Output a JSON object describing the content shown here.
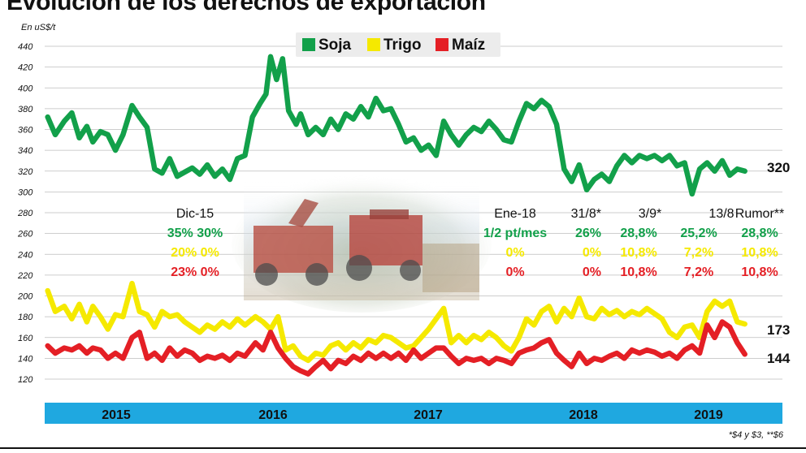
{
  "title": "Evolución de los derechos de exportación",
  "unit_label": "En uS$/t",
  "footnote": "*$4 y $3, **$6",
  "legend": [
    {
      "name": "Soja",
      "color": "#12a04a"
    },
    {
      "name": "Trigo",
      "color": "#f5e900"
    },
    {
      "name": "Maíz",
      "color": "#e41f25"
    }
  ],
  "annotations": [
    {
      "date": "Dic-15",
      "soja": "35% 30%",
      "trigo": "20% 0%",
      "maiz": "23% 0%"
    },
    {
      "date": "Ene-18",
      "soja": "1/2 pt/mes",
      "trigo": "0%",
      "maiz": "0%"
    },
    {
      "date": "31/8*",
      "soja": "26%",
      "trigo": "0%",
      "maiz": "0%"
    },
    {
      "date": "3/9*",
      "soja": "28,8%",
      "trigo": "10,8%",
      "maiz": "10,8%"
    },
    {
      "date": "13/8",
      "soja": "25,2%",
      "trigo": "7,2%",
      "maiz": "7,2%"
    },
    {
      "date": "Rumor**",
      "soja": "28,8%",
      "trigo": "10,8%",
      "maiz": "10,8%"
    }
  ],
  "chart_data": {
    "type": "line",
    "title": "Evolución de los derechos de exportación",
    "ylabel": "En uS$/t",
    "ylim": [
      120,
      450
    ],
    "yticks": [
      120,
      140,
      160,
      180,
      200,
      220,
      240,
      260,
      280,
      300,
      320,
      340,
      360,
      380,
      400,
      420,
      440
    ],
    "x_range": [
      2014.65,
      2019.55
    ],
    "year_labels": [
      "2015",
      "2016",
      "2017",
      "2018",
      "2019"
    ],
    "grid": true,
    "legend_position": "top-center",
    "series": [
      {
        "name": "Soja",
        "color": "#12a04a",
        "end_label": "320",
        "points": [
          [
            2014.67,
            372
          ],
          [
            2014.72,
            355
          ],
          [
            2014.78,
            368
          ],
          [
            2014.83,
            376
          ],
          [
            2014.88,
            352
          ],
          [
            2014.93,
            363
          ],
          [
            2014.97,
            348
          ],
          [
            2015.02,
            358
          ],
          [
            2015.07,
            355
          ],
          [
            2015.12,
            340
          ],
          [
            2015.17,
            355
          ],
          [
            2015.23,
            383
          ],
          [
            2015.28,
            372
          ],
          [
            2015.33,
            362
          ],
          [
            2015.38,
            322
          ],
          [
            2015.43,
            318
          ],
          [
            2015.48,
            332
          ],
          [
            2015.53,
            315
          ],
          [
            2015.58,
            319
          ],
          [
            2015.63,
            323
          ],
          [
            2015.68,
            317
          ],
          [
            2015.73,
            326
          ],
          [
            2015.78,
            315
          ],
          [
            2015.83,
            322
          ],
          [
            2015.88,
            312
          ],
          [
            2015.93,
            332
          ],
          [
            2015.98,
            335
          ],
          [
            2016.03,
            372
          ],
          [
            2016.08,
            385
          ],
          [
            2016.12,
            394
          ],
          [
            2016.15,
            430
          ],
          [
            2016.19,
            408
          ],
          [
            2016.23,
            428
          ],
          [
            2016.27,
            378
          ],
          [
            2016.32,
            365
          ],
          [
            2016.35,
            375
          ],
          [
            2016.4,
            355
          ],
          [
            2016.45,
            362
          ],
          [
            2016.5,
            355
          ],
          [
            2016.55,
            370
          ],
          [
            2016.6,
            360
          ],
          [
            2016.65,
            375
          ],
          [
            2016.7,
            370
          ],
          [
            2016.75,
            382
          ],
          [
            2016.8,
            372
          ],
          [
            2016.85,
            390
          ],
          [
            2016.9,
            378
          ],
          [
            2016.95,
            380
          ],
          [
            2017.0,
            365
          ],
          [
            2017.05,
            348
          ],
          [
            2017.1,
            352
          ],
          [
            2017.15,
            340
          ],
          [
            2017.2,
            345
          ],
          [
            2017.25,
            335
          ],
          [
            2017.3,
            368
          ],
          [
            2017.35,
            355
          ],
          [
            2017.4,
            345
          ],
          [
            2017.45,
            355
          ],
          [
            2017.5,
            362
          ],
          [
            2017.55,
            358
          ],
          [
            2017.6,
            368
          ],
          [
            2017.65,
            360
          ],
          [
            2017.7,
            350
          ],
          [
            2017.75,
            348
          ],
          [
            2017.8,
            368
          ],
          [
            2017.85,
            385
          ],
          [
            2017.9,
            380
          ],
          [
            2017.95,
            388
          ],
          [
            2018.0,
            382
          ],
          [
            2018.05,
            365
          ],
          [
            2018.1,
            322
          ],
          [
            2018.15,
            310
          ],
          [
            2018.2,
            326
          ],
          [
            2018.25,
            302
          ],
          [
            2018.3,
            312
          ],
          [
            2018.35,
            317
          ],
          [
            2018.4,
            310
          ],
          [
            2018.45,
            325
          ],
          [
            2018.5,
            335
          ],
          [
            2018.55,
            328
          ],
          [
            2018.6,
            335
          ],
          [
            2018.65,
            332
          ],
          [
            2018.7,
            335
          ],
          [
            2018.75,
            330
          ],
          [
            2018.8,
            335
          ],
          [
            2018.85,
            325
          ],
          [
            2018.9,
            328
          ],
          [
            2018.95,
            298
          ],
          [
            2019.0,
            322
          ],
          [
            2019.05,
            328
          ],
          [
            2019.1,
            320
          ],
          [
            2019.15,
            330
          ],
          [
            2019.2,
            316
          ],
          [
            2019.25,
            322
          ],
          [
            2019.3,
            320
          ]
        ]
      },
      {
        "name": "Trigo",
        "color": "#f5e900",
        "end_label": "173",
        "points": [
          [
            2014.67,
            205
          ],
          [
            2014.72,
            185
          ],
          [
            2014.78,
            190
          ],
          [
            2014.83,
            178
          ],
          [
            2014.88,
            192
          ],
          [
            2014.93,
            175
          ],
          [
            2014.97,
            190
          ],
          [
            2015.02,
            180
          ],
          [
            2015.07,
            168
          ],
          [
            2015.12,
            182
          ],
          [
            2015.17,
            180
          ],
          [
            2015.23,
            212
          ],
          [
            2015.28,
            185
          ],
          [
            2015.33,
            182
          ],
          [
            2015.38,
            170
          ],
          [
            2015.43,
            185
          ],
          [
            2015.48,
            180
          ],
          [
            2015.53,
            182
          ],
          [
            2015.58,
            175
          ],
          [
            2015.63,
            170
          ],
          [
            2015.68,
            165
          ],
          [
            2015.73,
            172
          ],
          [
            2015.78,
            168
          ],
          [
            2015.83,
            175
          ],
          [
            2015.88,
            170
          ],
          [
            2015.93,
            178
          ],
          [
            2015.98,
            172
          ],
          [
            2016.05,
            180
          ],
          [
            2016.1,
            175
          ],
          [
            2016.15,
            168
          ],
          [
            2016.2,
            180
          ],
          [
            2016.25,
            148
          ],
          [
            2016.3,
            152
          ],
          [
            2016.35,
            142
          ],
          [
            2016.4,
            138
          ],
          [
            2016.45,
            145
          ],
          [
            2016.5,
            143
          ],
          [
            2016.55,
            152
          ],
          [
            2016.6,
            155
          ],
          [
            2016.65,
            148
          ],
          [
            2016.7,
            155
          ],
          [
            2016.75,
            150
          ],
          [
            2016.8,
            158
          ],
          [
            2016.85,
            155
          ],
          [
            2016.9,
            162
          ],
          [
            2016.95,
            160
          ],
          [
            2017.0,
            155
          ],
          [
            2017.05,
            150
          ],
          [
            2017.1,
            152
          ],
          [
            2017.15,
            160
          ],
          [
            2017.2,
            168
          ],
          [
            2017.25,
            178
          ],
          [
            2017.3,
            188
          ],
          [
            2017.35,
            155
          ],
          [
            2017.4,
            162
          ],
          [
            2017.45,
            155
          ],
          [
            2017.5,
            162
          ],
          [
            2017.55,
            158
          ],
          [
            2017.6,
            165
          ],
          [
            2017.65,
            160
          ],
          [
            2017.7,
            152
          ],
          [
            2017.75,
            147
          ],
          [
            2017.8,
            160
          ],
          [
            2017.85,
            178
          ],
          [
            2017.9,
            172
          ],
          [
            2017.95,
            185
          ],
          [
            2018.0,
            190
          ],
          [
            2018.05,
            175
          ],
          [
            2018.1,
            188
          ],
          [
            2018.15,
            180
          ],
          [
            2018.2,
            198
          ],
          [
            2018.25,
            180
          ],
          [
            2018.3,
            178
          ],
          [
            2018.35,
            188
          ],
          [
            2018.4,
            182
          ],
          [
            2018.45,
            186
          ],
          [
            2018.5,
            180
          ],
          [
            2018.55,
            185
          ],
          [
            2018.6,
            182
          ],
          [
            2018.65,
            188
          ],
          [
            2018.7,
            183
          ],
          [
            2018.75,
            178
          ],
          [
            2018.8,
            165
          ],
          [
            2018.85,
            160
          ],
          [
            2018.9,
            170
          ],
          [
            2018.95,
            172
          ],
          [
            2019.0,
            160
          ],
          [
            2019.05,
            185
          ],
          [
            2019.1,
            195
          ],
          [
            2019.15,
            190
          ],
          [
            2019.2,
            195
          ],
          [
            2019.25,
            175
          ],
          [
            2019.3,
            173
          ]
        ]
      },
      {
        "name": "Maíz",
        "color": "#e41f25",
        "end_label": "144",
        "points": [
          [
            2014.67,
            152
          ],
          [
            2014.72,
            145
          ],
          [
            2014.78,
            150
          ],
          [
            2014.83,
            148
          ],
          [
            2014.88,
            152
          ],
          [
            2014.93,
            145
          ],
          [
            2014.97,
            150
          ],
          [
            2015.02,
            148
          ],
          [
            2015.07,
            140
          ],
          [
            2015.12,
            145
          ],
          [
            2015.17,
            140
          ],
          [
            2015.23,
            160
          ],
          [
            2015.28,
            165
          ],
          [
            2015.33,
            140
          ],
          [
            2015.38,
            145
          ],
          [
            2015.43,
            138
          ],
          [
            2015.48,
            150
          ],
          [
            2015.53,
            142
          ],
          [
            2015.58,
            148
          ],
          [
            2015.63,
            145
          ],
          [
            2015.68,
            138
          ],
          [
            2015.73,
            142
          ],
          [
            2015.78,
            140
          ],
          [
            2015.83,
            143
          ],
          [
            2015.88,
            138
          ],
          [
            2015.93,
            145
          ],
          [
            2015.98,
            142
          ],
          [
            2016.05,
            155
          ],
          [
            2016.1,
            148
          ],
          [
            2016.15,
            165
          ],
          [
            2016.2,
            150
          ],
          [
            2016.25,
            140
          ],
          [
            2016.3,
            132
          ],
          [
            2016.35,
            128
          ],
          [
            2016.4,
            125
          ],
          [
            2016.45,
            132
          ],
          [
            2016.5,
            138
          ],
          [
            2016.55,
            130
          ],
          [
            2016.6,
            138
          ],
          [
            2016.65,
            135
          ],
          [
            2016.7,
            142
          ],
          [
            2016.75,
            138
          ],
          [
            2016.8,
            145
          ],
          [
            2016.85,
            140
          ],
          [
            2016.9,
            145
          ],
          [
            2016.95,
            140
          ],
          [
            2017.0,
            145
          ],
          [
            2017.05,
            138
          ],
          [
            2017.1,
            148
          ],
          [
            2017.15,
            140
          ],
          [
            2017.2,
            145
          ],
          [
            2017.25,
            150
          ],
          [
            2017.3,
            150
          ],
          [
            2017.35,
            142
          ],
          [
            2017.4,
            135
          ],
          [
            2017.45,
            140
          ],
          [
            2017.5,
            138
          ],
          [
            2017.55,
            140
          ],
          [
            2017.6,
            135
          ],
          [
            2017.65,
            140
          ],
          [
            2017.7,
            138
          ],
          [
            2017.75,
            135
          ],
          [
            2017.8,
            145
          ],
          [
            2017.85,
            148
          ],
          [
            2017.9,
            150
          ],
          [
            2017.95,
            155
          ],
          [
            2018.0,
            158
          ],
          [
            2018.05,
            145
          ],
          [
            2018.1,
            138
          ],
          [
            2018.15,
            132
          ],
          [
            2018.2,
            145
          ],
          [
            2018.25,
            135
          ],
          [
            2018.3,
            140
          ],
          [
            2018.35,
            138
          ],
          [
            2018.4,
            142
          ],
          [
            2018.45,
            145
          ],
          [
            2018.5,
            140
          ],
          [
            2018.55,
            148
          ],
          [
            2018.6,
            145
          ],
          [
            2018.65,
            148
          ],
          [
            2018.7,
            146
          ],
          [
            2018.75,
            142
          ],
          [
            2018.8,
            145
          ],
          [
            2018.85,
            140
          ],
          [
            2018.9,
            148
          ],
          [
            2018.95,
            152
          ],
          [
            2019.0,
            145
          ],
          [
            2019.05,
            172
          ],
          [
            2019.1,
            160
          ],
          [
            2019.15,
            175
          ],
          [
            2019.2,
            170
          ],
          [
            2019.25,
            155
          ],
          [
            2019.3,
            144
          ]
        ]
      }
    ]
  }
}
